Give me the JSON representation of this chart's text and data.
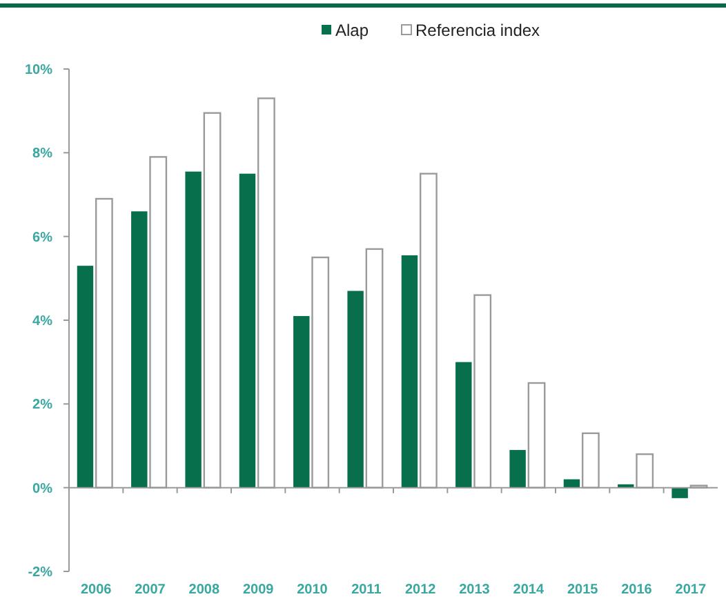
{
  "chart_data": {
    "type": "bar",
    "categories": [
      "2006",
      "2007",
      "2008",
      "2009",
      "2010",
      "2011",
      "2012",
      "2013",
      "2014",
      "2015",
      "2016",
      "2017"
    ],
    "series": [
      {
        "name": "Alap",
        "color": "#076f4c",
        "values": [
          5.3,
          6.6,
          7.55,
          7.5,
          4.1,
          4.7,
          5.55,
          3.0,
          0.9,
          0.2,
          0.08,
          -0.25
        ]
      },
      {
        "name": "Referencia index",
        "color": "#ffffff",
        "values": [
          6.9,
          7.9,
          8.95,
          9.3,
          5.5,
          5.7,
          7.5,
          4.6,
          2.5,
          1.3,
          0.8,
          0.05
        ]
      }
    ],
    "ylim": [
      -2,
      10
    ],
    "yticks": [
      {
        "value": -2,
        "label": "-2%"
      },
      {
        "value": 0,
        "label": "0%"
      },
      {
        "value": 2,
        "label": "2%"
      },
      {
        "value": 4,
        "label": "4%"
      },
      {
        "value": 6,
        "label": "6%"
      },
      {
        "value": 8,
        "label": "8%"
      },
      {
        "value": 10,
        "label": "10%"
      }
    ],
    "legend": "top"
  }
}
